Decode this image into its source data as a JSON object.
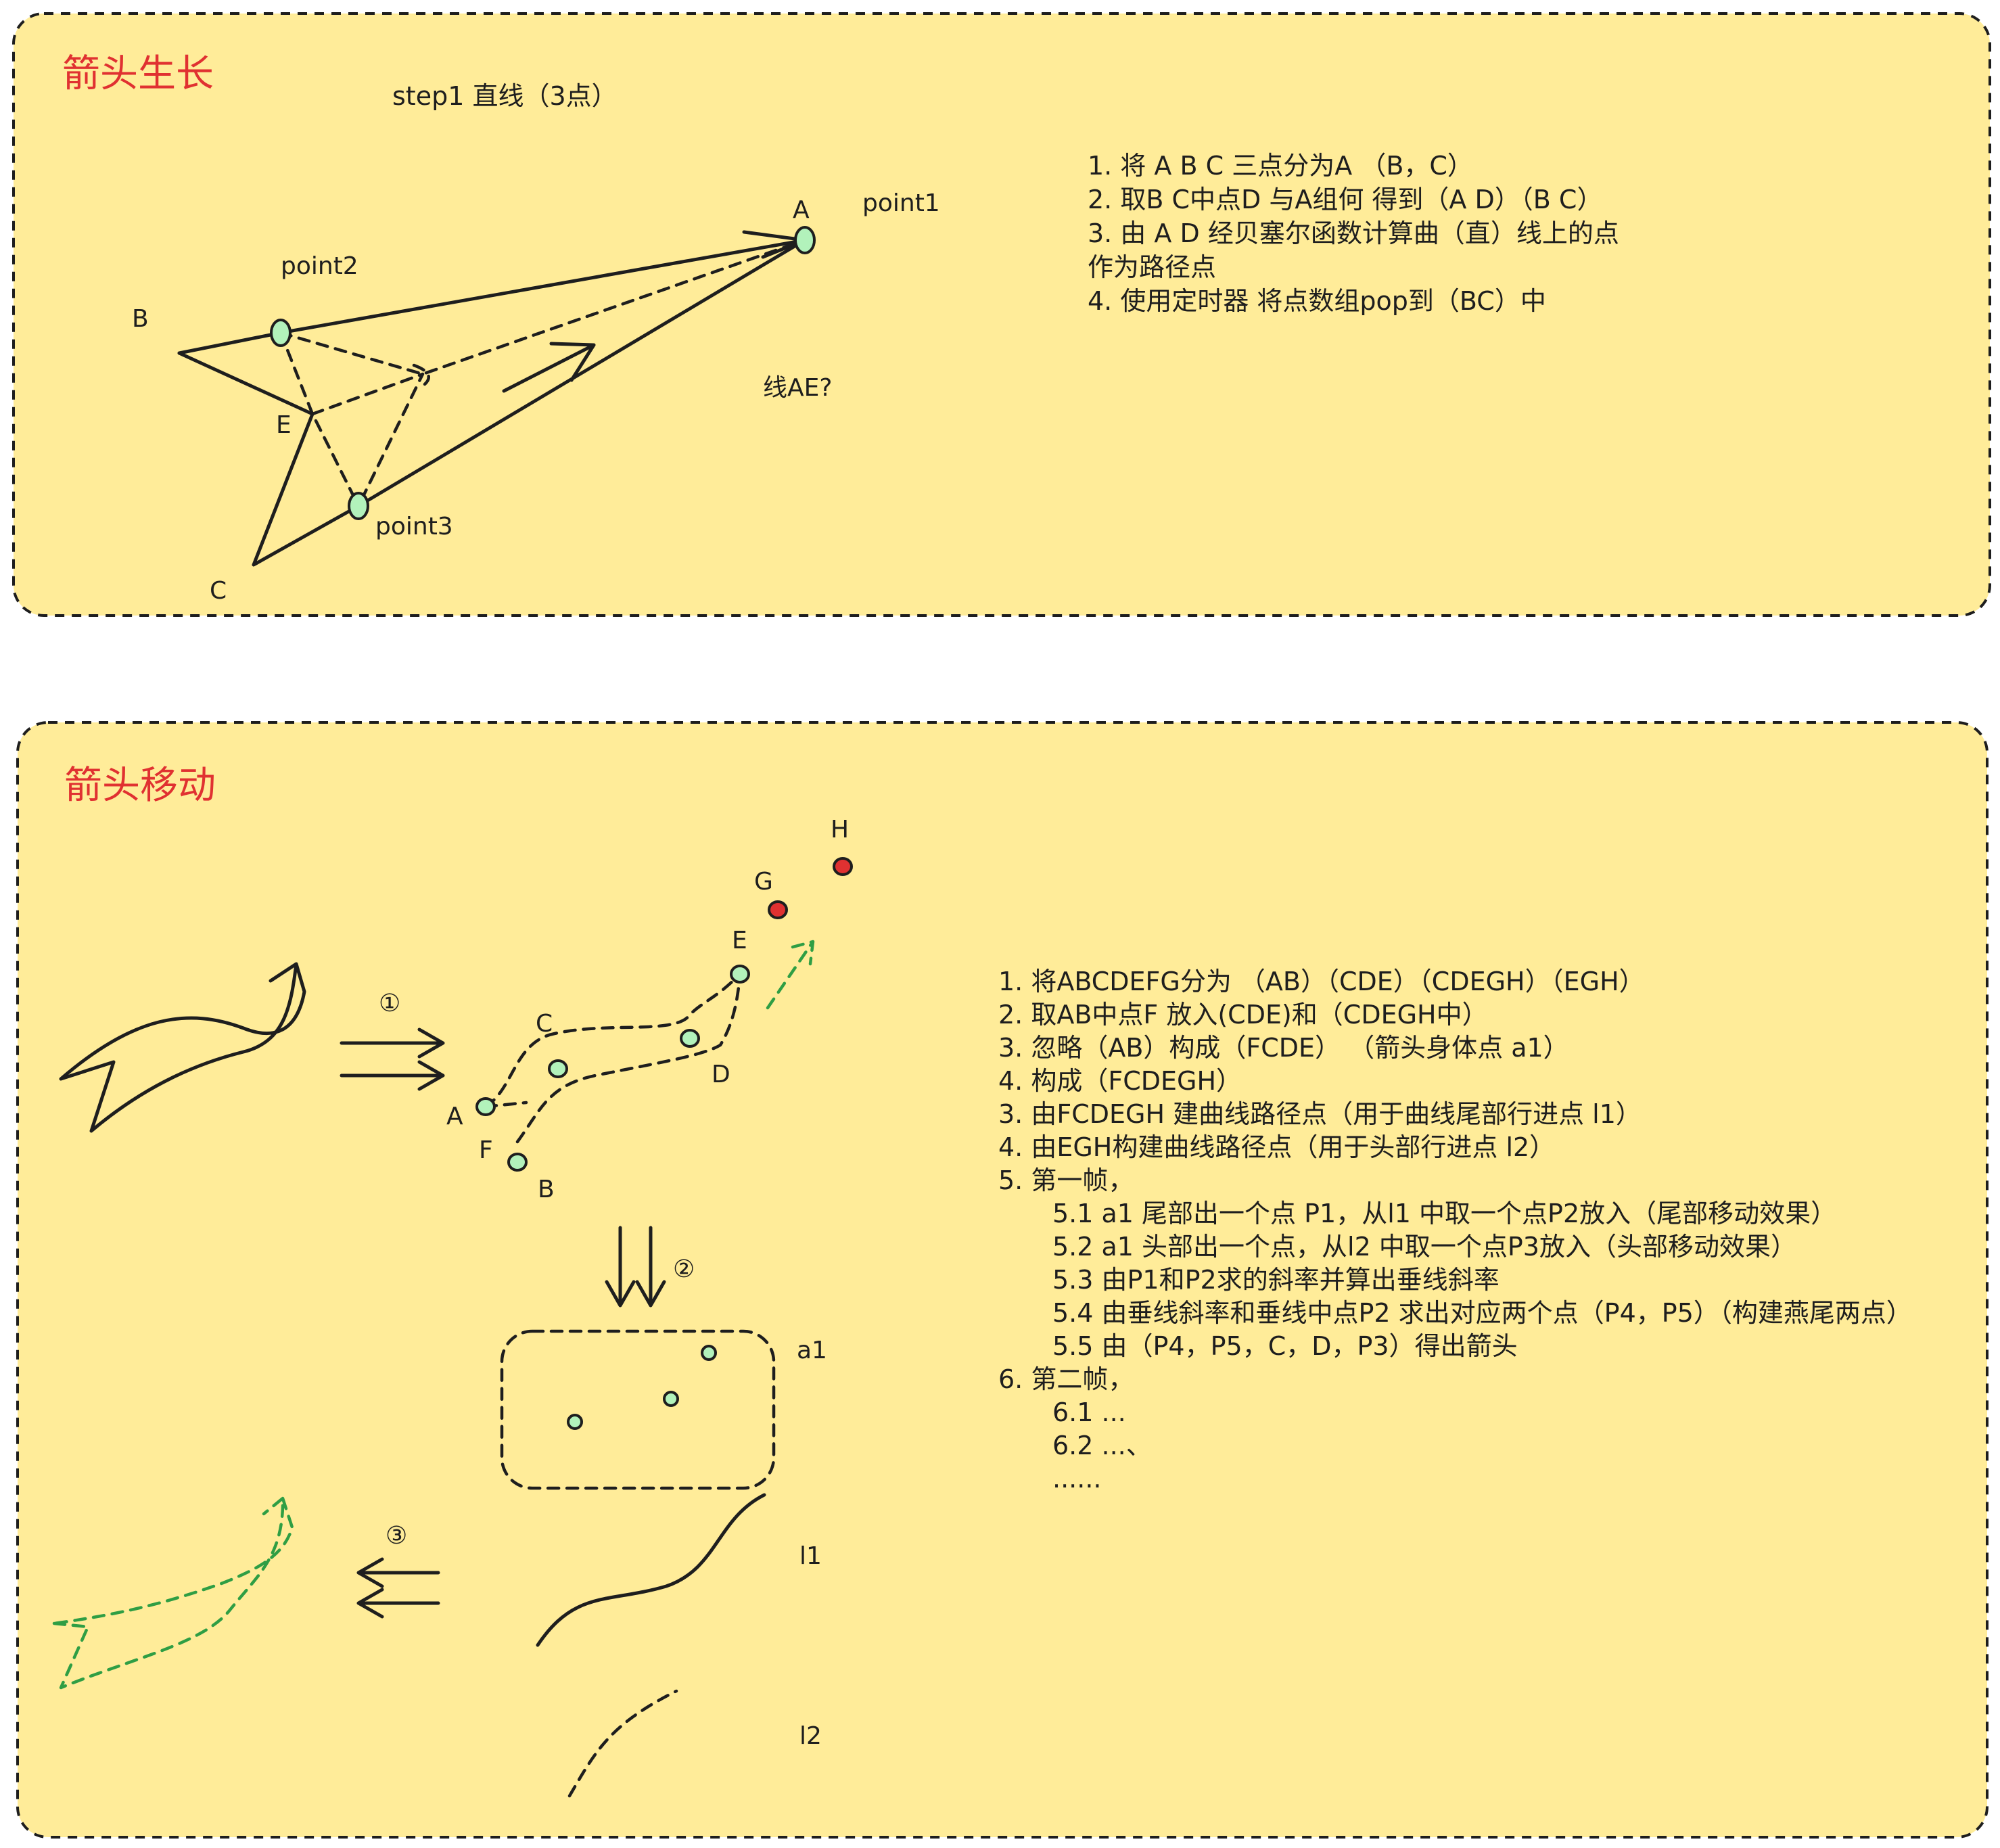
{
  "section1": {
    "title": "箭头生长",
    "step": "step1 直线（3点）",
    "labels": {
      "A": "A",
      "B": "B",
      "C": "C",
      "E": "E",
      "point1": "point1",
      "point2": "point2",
      "point3": "point3",
      "lineAE": "线AE?"
    },
    "notes": [
      "1.  将 A B C 三点分为A （B，C）",
      "2. 取B C中点D 与A组何 得到（A D）（B C）",
      "3. 由 A D 经贝塞尔函数计算曲（直）线上的点",
      "作为路径点",
      "4. 使用定时器 将点数组pop到（BC）中"
    ]
  },
  "section2": {
    "title": "箭头移动",
    "step_markers": [
      "①",
      "②",
      "③"
    ],
    "labels": {
      "A": "A",
      "B": "B",
      "C": "C",
      "D": "D",
      "E": "E",
      "F": "F",
      "G": "G",
      "H": "H",
      "a1": "a1",
      "l1": "l1",
      "l2": "l2"
    },
    "notes": [
      "1.  将ABCDEFG分为 （AB）（CDE）（CDEGH）（EGH）",
      "2. 取AB中点F 放入(CDE)和（CDEGH中）",
      "3. 忽略（AB）构成（FCDE）  （箭头身体点 a1）",
      "4. 构成（FCDEGH）",
      "3. 由FCDEGH 建曲线路径点（用于曲线尾部行进点 l1）",
      "4. 由EGH构建曲线路径点（用于头部行进点 l2）",
      "5. 第一帧，",
      "5.1  a1 尾部出一个点 P1，从l1 中取一个点P2放入（尾部移动效果）",
      "5.2 a1 头部出一个点，从l2 中取一个点P3放入（头部移动效果）",
      "5.3 由P1和P2求的斜率并算出垂线斜率",
      "5.4 由垂线斜率和垂线中点P2 求出对应两个点（P4，P5）（构建燕尾两点）",
      "5.5 由（P4，P5，C，D，P3）得出箭头",
      "6. 第二帧，",
      "6.1  ...",
      "6.2 ...、",
      "......"
    ]
  },
  "colors": {
    "panel": "#ffec99",
    "title": "#e03131",
    "point": "#b2f2bb",
    "point_red": "#e03131",
    "green_dash": "#2f9e44",
    "ink": "#1e1e1e"
  }
}
